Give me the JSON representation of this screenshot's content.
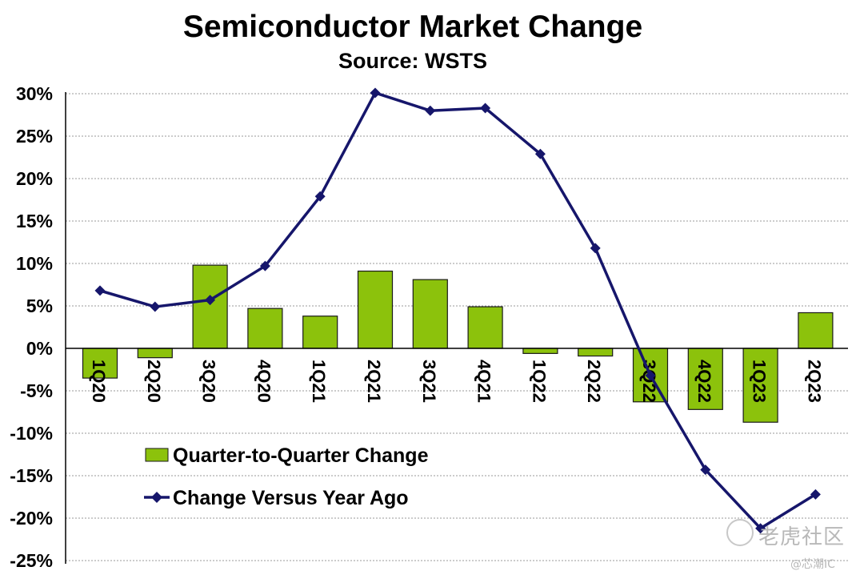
{
  "title": "Semiconductor Market Change",
  "subtitle": "Source: WSTS",
  "chart_data": {
    "type": "bar",
    "title": "Semiconductor Market Change",
    "subtitle": "Source: WSTS",
    "categories": [
      "1Q20",
      "2Q20",
      "3Q20",
      "4Q20",
      "1Q21",
      "2Q21",
      "3Q21",
      "4Q21",
      "1Q22",
      "2Q22",
      "3Q22",
      "4Q22",
      "1Q23",
      "2Q23"
    ],
    "series": [
      {
        "name": "Quarter-to-Quarter Change",
        "type": "bar",
        "color": "#8cc20c",
        "values": [
          -3.5,
          -1.1,
          9.8,
          4.7,
          3.8,
          9.1,
          8.1,
          4.9,
          -0.6,
          -0.9,
          -6.3,
          -7.2,
          -8.7,
          4.2
        ]
      },
      {
        "name": "Change Versus Year Ago",
        "type": "line",
        "color": "#16166b",
        "values": [
          6.8,
          4.9,
          5.7,
          9.7,
          17.9,
          30.1,
          28.0,
          28.3,
          22.9,
          11.8,
          -3.2,
          -14.3,
          -21.2,
          -17.2
        ]
      }
    ],
    "ylim": [
      -25,
      30
    ],
    "yticks": [
      30,
      25,
      20,
      15,
      10,
      5,
      0,
      -5,
      -10,
      -15,
      -20,
      -25
    ],
    "ytick_labels": [
      "30%",
      "25%",
      "20%",
      "15%",
      "10%",
      "5%",
      "0%",
      "-5%",
      "-10%",
      "-15%",
      "-20%",
      "-25%"
    ],
    "grid": true,
    "legend_position": "bottom-left inside"
  },
  "watermark": {
    "main": "老虎社区",
    "sub": "@芯潮IC"
  }
}
